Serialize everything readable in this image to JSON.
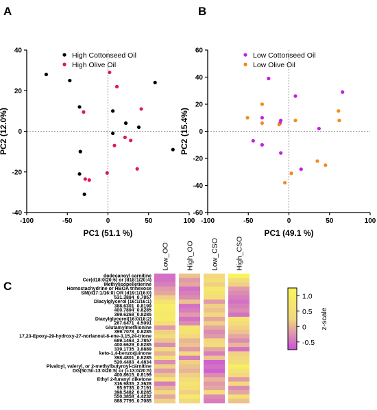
{
  "panels": {
    "A": "A",
    "B": "B",
    "C": "C"
  },
  "chart_data": [
    {
      "type": "scatter",
      "panel": "A",
      "xlabel": "PC1 (51.1 %)",
      "ylabel": "PC2 (12.0%)",
      "xlim": [
        -100,
        100
      ],
      "ylim": [
        -40,
        40
      ],
      "xticks": [
        "-100",
        "-50",
        "0",
        "50",
        "100"
      ],
      "yticks": [
        "-40",
        "-20",
        "0",
        "20",
        "40"
      ],
      "legend_position": "top-left",
      "series": [
        {
          "name": "High Cottonseed Oil",
          "color": "#000000",
          "points": [
            [
              -76,
              28
            ],
            [
              -47,
              25
            ],
            [
              -35,
              12
            ],
            [
              -34,
              -10
            ],
            [
              -35,
              -21
            ],
            [
              -29,
              -31
            ],
            [
              6,
              10
            ],
            [
              6,
              -1
            ],
            [
              22,
              4
            ],
            [
              38,
              2
            ],
            [
              58,
              24
            ],
            [
              80,
              -9
            ]
          ]
        },
        {
          "name": "High Olive Oil",
          "color": "#e0185e",
          "points": [
            [
              -30,
              9.5
            ],
            [
              -28,
              -23.5
            ],
            [
              -23,
              -24
            ],
            [
              -1,
              -20.5
            ],
            [
              2,
              29
            ],
            [
              11,
              22
            ],
            [
              8,
              -7
            ],
            [
              21,
              -3
            ],
            [
              28,
              -4.5
            ],
            [
              36,
              -18.5
            ],
            [
              41,
              11
            ]
          ]
        }
      ]
    },
    {
      "type": "scatter",
      "panel": "B",
      "xlabel": "PC1 (49.1 %)",
      "ylabel": "PC2 (15.4%)",
      "xlim": [
        -100,
        100
      ],
      "ylim": [
        -60,
        60
      ],
      "xticks": [
        "-100",
        "-50",
        "0",
        "50",
        "100"
      ],
      "yticks": [
        "-60",
        "-40",
        "-20",
        "0",
        "20",
        "40",
        "60"
      ],
      "legend_position": "top-left",
      "series": [
        {
          "name": "Low Cottonseed Oil",
          "color": "#c21fe0",
          "points": [
            [
              -25,
              39
            ],
            [
              -44,
              -7
            ],
            [
              -33,
              -10
            ],
            [
              -33,
              10
            ],
            [
              -11,
              6
            ],
            [
              -10,
              8
            ],
            [
              -10,
              -16
            ],
            [
              8,
              26
            ],
            [
              15,
              -28
            ],
            [
              37,
              2
            ],
            [
              66,
              29
            ]
          ]
        },
        {
          "name": "Low Olive Oil",
          "color": "#f28a1a",
          "points": [
            [
              -51,
              10
            ],
            [
              -33,
              20
            ],
            [
              -33,
              6
            ],
            [
              -12,
              5
            ],
            [
              -5,
              -38
            ],
            [
              3,
              -31
            ],
            [
              8,
              8
            ],
            [
              35,
              -22
            ],
            [
              45,
              -25
            ],
            [
              61,
              15
            ],
            [
              62,
              8
            ]
          ]
        }
      ]
    },
    {
      "type": "heatmap",
      "panel": "C",
      "columns": [
        "Low_OO",
        "High_OO",
        "Low_CSO",
        "High_CSO"
      ],
      "rows": [
        "dodecanoyl carnitine",
        "Cer(d18:0/20:5) or (d18:1/20:4)",
        "Methylisopelletierine",
        "Homostachydrine or HBOA trihexose",
        "SM(d17:1/16:0) OR (d19:1/16:0)",
        "531.3884_0.7857",
        "Diacylglycerol (16:1/16:1)",
        "388.6301_0.8199",
        "400.7894_0.8285",
        "399.6268_0.8285",
        "Diacylglycerol(16:0/18:2)",
        "267.6471_4.5091",
        "Glutamylmethionine",
        "399.7078_0.8285",
        "17,23-Epoxy-29-hydroxy-27-norlanost-8-ene-3,15,24-trione",
        "689.1463_2.7857",
        "400.6629_0.8285",
        "339.1735_3.8889",
        "keto-1,4-benzoquinone",
        "398.4801_0.8285",
        "520.4483_4.4834",
        "Pivaloyl, valeryl, or 2-methylbutyroyl-carnitine",
        "DG(50:5/i-13:0/20:5) or (i-13:0/20:5)",
        "400.8615_0.8199",
        "Ethyl 2-furanyl diketone",
        "316.9835_2.3628",
        "95.9735_0.7191",
        "398.5482_0.8285",
        "550.3858_4.4232",
        "888.7795_0.7085"
      ],
      "values": [
        [
          -0.5,
          0.1,
          0.3,
          1.2
        ],
        [
          -0.5,
          -0.2,
          0.5,
          0.4
        ],
        [
          -0.4,
          -0.1,
          0.2,
          0.2
        ],
        [
          -0.2,
          -0.5,
          0.8,
          -0.2
        ],
        [
          -0.1,
          -0.4,
          0.6,
          -0.3
        ],
        [
          0.2,
          -0.3,
          0.5,
          -0.4
        ],
        [
          0.6,
          0.1,
          -0.2,
          -0.5
        ],
        [
          1.0,
          -0.5,
          0.2,
          -0.4
        ],
        [
          0.9,
          -0.4,
          0.1,
          -0.3
        ],
        [
          0.8,
          -0.2,
          0.3,
          -0.5
        ],
        [
          0.9,
          -0.5,
          -0.1,
          0.7
        ],
        [
          0.5,
          -0.3,
          0.2,
          0.4
        ],
        [
          -0.2,
          0.7,
          -0.1,
          0.2
        ],
        [
          0.2,
          0.6,
          -0.3,
          0.1
        ],
        [
          0.4,
          0.3,
          -0.2,
          -0.1
        ],
        [
          0.1,
          0.0,
          0.3,
          -0.3
        ],
        [
          -0.3,
          0.1,
          0.4,
          0.0
        ],
        [
          0.3,
          -0.2,
          -0.1,
          -0.5
        ],
        [
          0.0,
          0.3,
          -0.4,
          0.2
        ],
        [
          0.5,
          -0.4,
          0.1,
          0.3
        ],
        [
          -0.3,
          0.2,
          -0.6,
          0.4
        ],
        [
          0.2,
          0.1,
          -0.5,
          1.0
        ],
        [
          -0.2,
          0.0,
          -0.6,
          0.6
        ],
        [
          0.1,
          0.2,
          -0.3,
          0.3
        ],
        [
          0.6,
          0.4,
          0.0,
          -0.2
        ],
        [
          -0.4,
          0.7,
          -0.2,
          0.3
        ],
        [
          0.0,
          0.5,
          -0.1,
          -0.3
        ],
        [
          0.3,
          0.2,
          0.4,
          -0.1
        ],
        [
          -0.1,
          0.8,
          -0.3,
          0.5
        ],
        [
          0.2,
          0.3,
          -0.4,
          0.1
        ]
      ],
      "colorbar": {
        "label": "z-scale",
        "ticks": [
          "1.0",
          "0.5",
          "0",
          "-0.5"
        ],
        "tick_values": [
          1.0,
          0.5,
          0,
          -0.5
        ],
        "vmin": -0.75,
        "vmax": 1.25,
        "colors": [
          "#c94fdc",
          "#f2d77f",
          "#f9f55c"
        ]
      }
    }
  ]
}
